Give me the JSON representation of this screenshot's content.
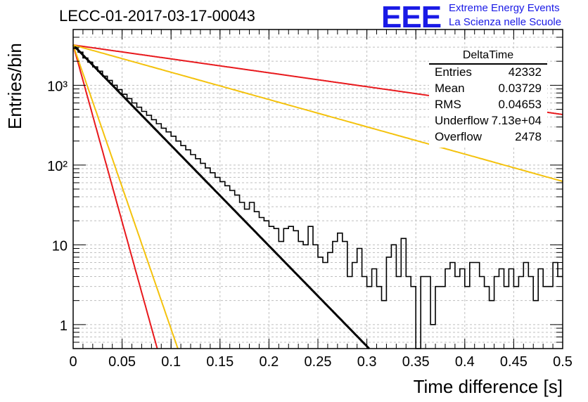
{
  "header": {
    "title": "LECC-01-2017-03-17-00043",
    "logo_text": "EEE",
    "logo_line1": "Extreme Energy Events",
    "logo_line2": "La Scienza nelle Scuole"
  },
  "stats_box": {
    "name": "DeltaTime",
    "rows": [
      {
        "label": "Entries",
        "value": "42332"
      },
      {
        "label": "Mean",
        "value": "0.03729"
      },
      {
        "label": "RMS",
        "value": "0.04653"
      },
      {
        "label": "Underflow",
        "value": "7.13e+04"
      },
      {
        "label": "Overflow",
        "value": "2478"
      }
    ]
  },
  "colors": {
    "histogram": "#000000",
    "fit": "#000000",
    "red_curves": "#e8181c",
    "yellow_curves": "#f4c20d",
    "grid": "#bfbfbf",
    "logo": "#1a1ae6"
  },
  "chart_data": {
    "type": "line",
    "title": "LECC-01-2017-03-17-00043",
    "xlabel": "Time difference [s]",
    "ylabel": "Entries/bin",
    "xlim": [
      0,
      0.5
    ],
    "ylim": [
      0.5,
      5000
    ],
    "yscale": "log",
    "grid": true,
    "x_ticks": [
      0,
      0.05,
      0.1,
      0.15,
      0.2,
      0.25,
      0.3,
      0.35,
      0.4,
      0.45,
      0.5
    ],
    "x_tick_labels": [
      "0",
      "0.05",
      "0.1",
      "0.15",
      "0.2",
      "0.25",
      "0.3",
      "0.35",
      "0.4",
      "0.45",
      "0.5"
    ],
    "y_ticks": [
      1,
      10,
      100,
      1000
    ],
    "y_tick_labels": [
      "1",
      "10",
      "10²",
      "10³"
    ],
    "histogram": {
      "bin_width": 0.005,
      "x_start": 0,
      "counts": [
        2900,
        2600,
        2200,
        1950,
        1700,
        1500,
        1300,
        1150,
        1000,
        880,
        770,
        680,
        600,
        530,
        470,
        420,
        370,
        330,
        290,
        260,
        230,
        200,
        175,
        155,
        135,
        120,
        105,
        92,
        80,
        70,
        62,
        55,
        48,
        42,
        34,
        28,
        34,
        26,
        22,
        20,
        17,
        16,
        11,
        16,
        17,
        15,
        11,
        10,
        17,
        10,
        7,
        6,
        8,
        11,
        14,
        11,
        4,
        6,
        9,
        4,
        3,
        5,
        3,
        2,
        7,
        10,
        4,
        12,
        4,
        3,
        0.3,
        4,
        4,
        1,
        3,
        3,
        5,
        6,
        4,
        5,
        3,
        6,
        6,
        4,
        3,
        2,
        4,
        5,
        3,
        5,
        3,
        4,
        6,
        4,
        2,
        5,
        3,
        3,
        6,
        4
      ]
    },
    "series": [
      {
        "type": "exponential",
        "role": "fit",
        "color": "#000000",
        "y0": 3200,
        "tau": 0.0345
      },
      {
        "type": "exponential",
        "role": "red-fast",
        "color": "#e8181c",
        "y0": 3200,
        "tau": 0.0098
      },
      {
        "type": "exponential",
        "role": "yellow-fast",
        "color": "#f4c20d",
        "y0": 3200,
        "tau": 0.0122
      },
      {
        "type": "exponential",
        "role": "red-slow",
        "color": "#e8181c",
        "y0": 3200,
        "tau": 0.2492
      },
      {
        "type": "exponential",
        "role": "yellow-slow",
        "color": "#f4c20d",
        "y0": 3200,
        "tau": 0.127
      }
    ]
  }
}
